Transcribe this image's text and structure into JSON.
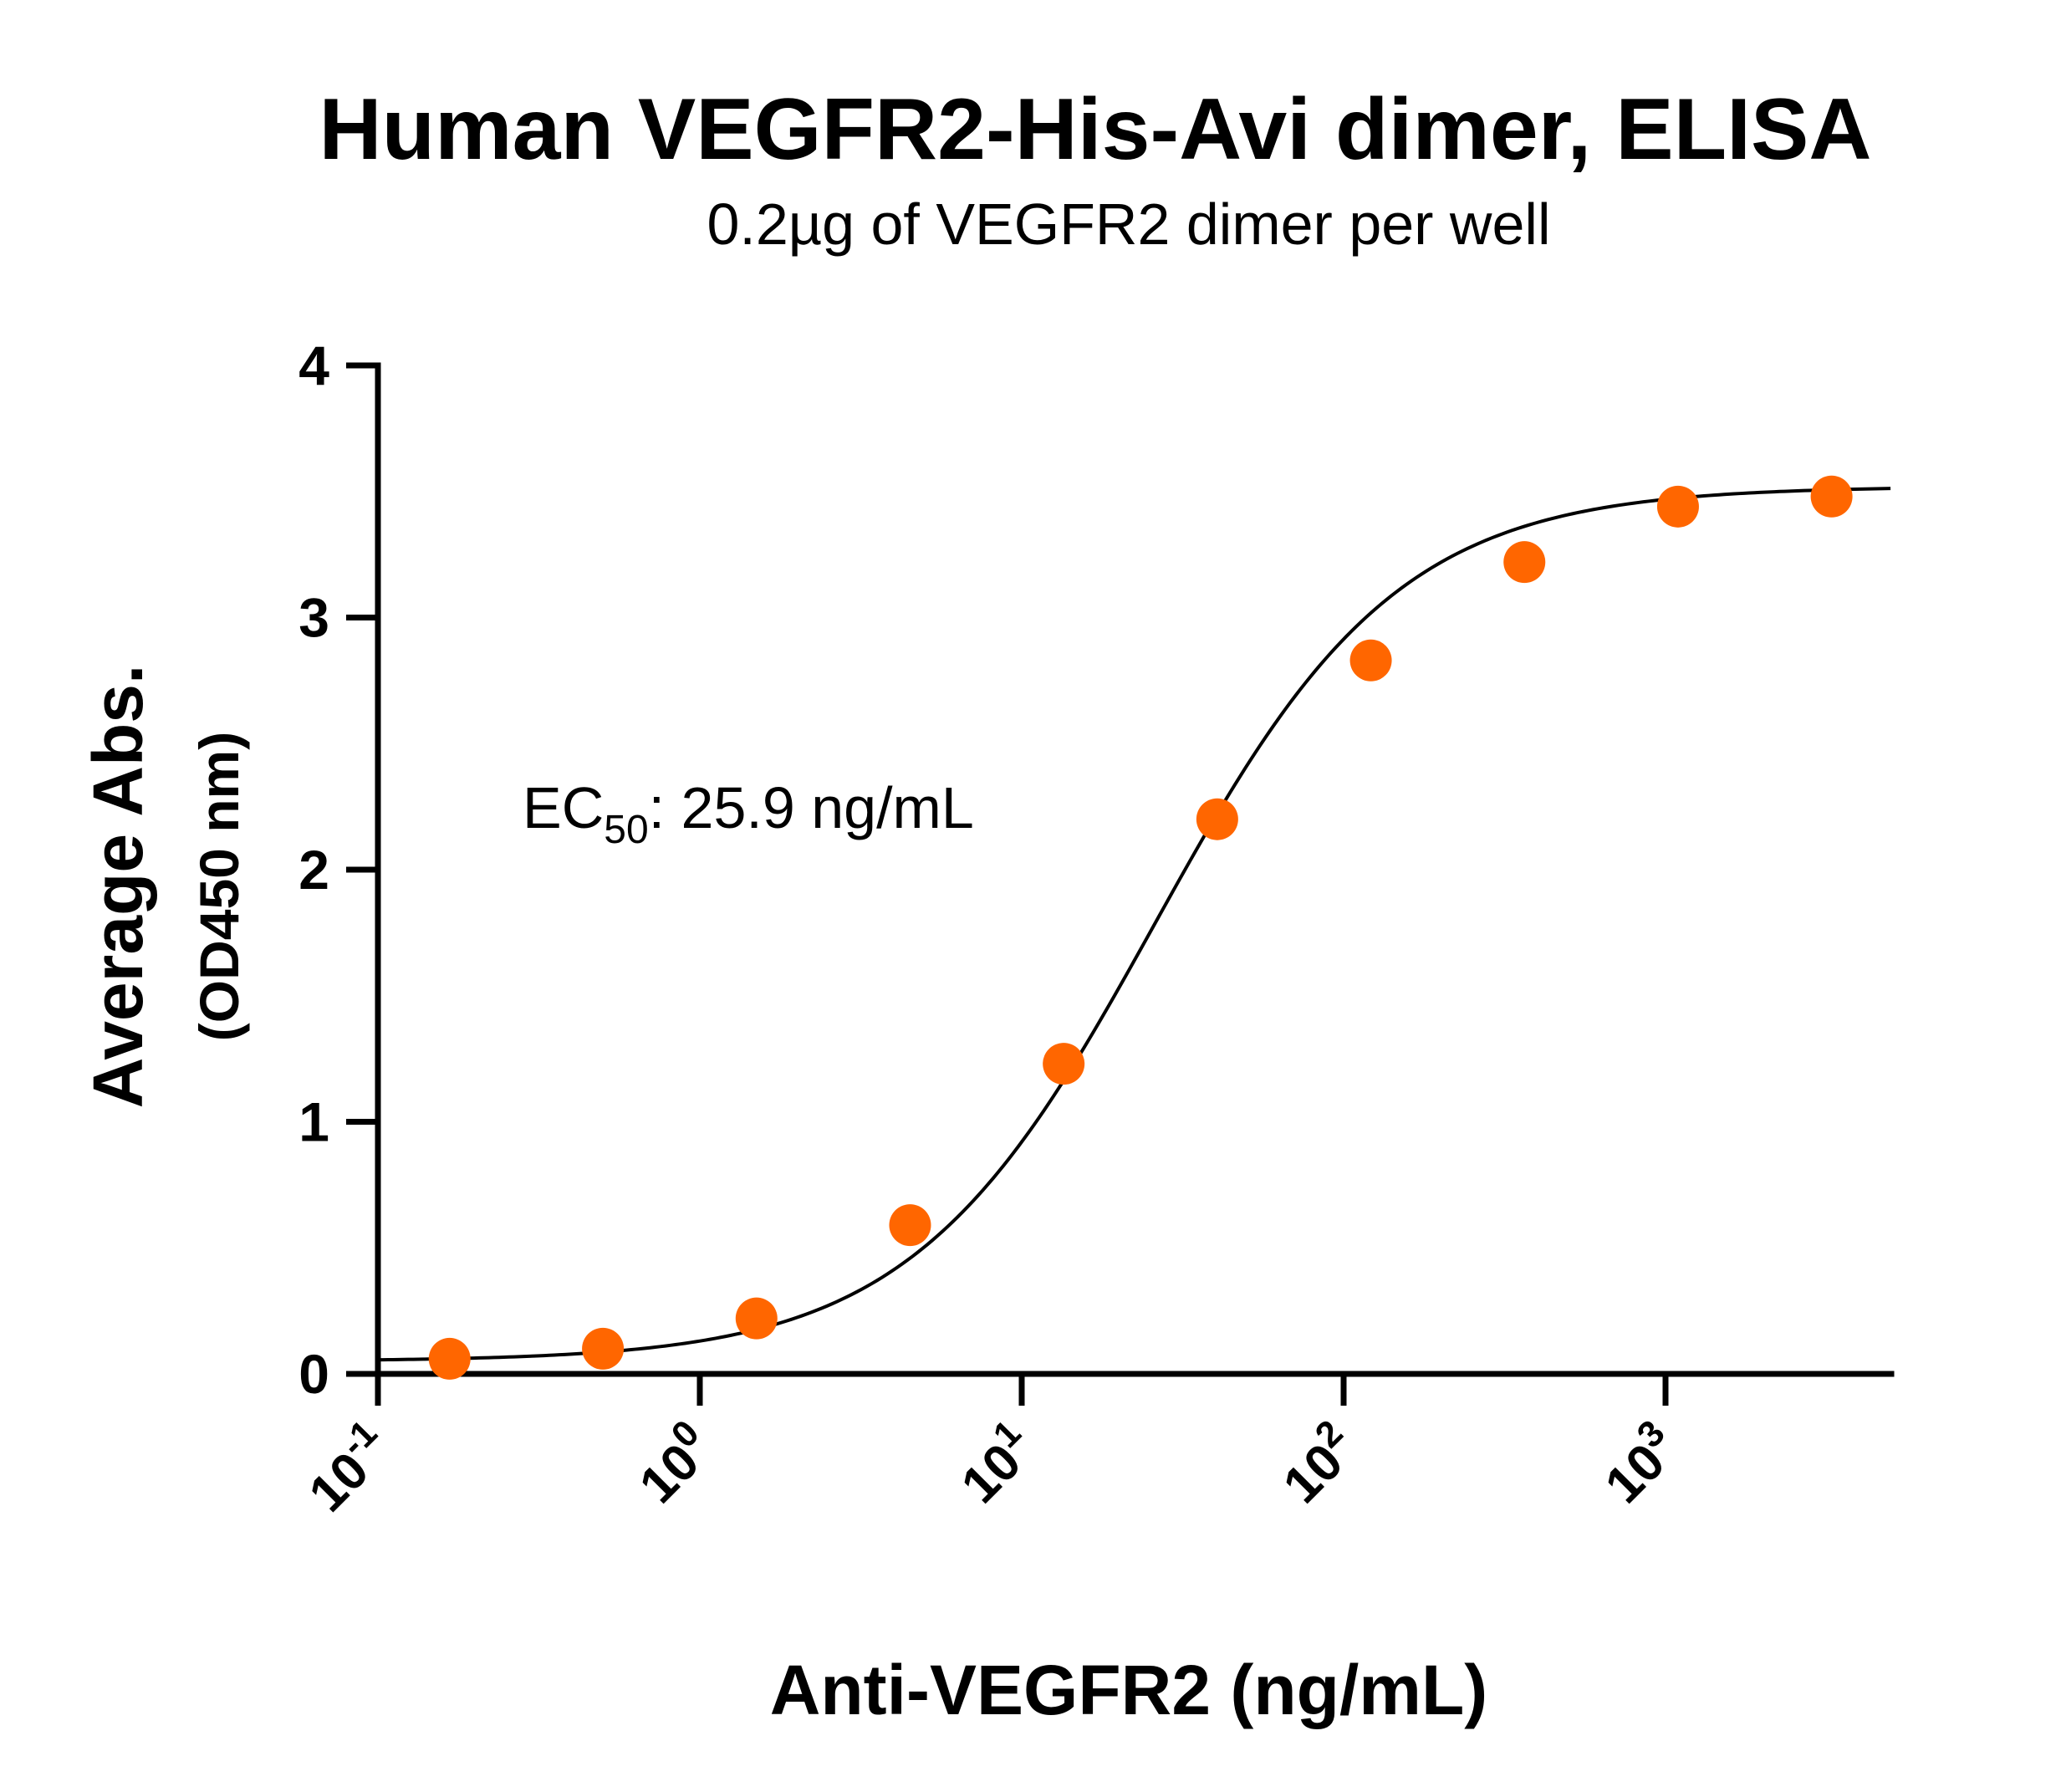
{
  "chart_data": {
    "type": "scatter",
    "title": "Human VEGFR2-His-Avi dimer, ELISA",
    "subtitle": "0.2µg of VEGFR2 dimer per well",
    "xlabel": "Anti-VEGFR2 (ng/mL)",
    "ylabel": "Average Abs.",
    "ylabel_unit": "(OD450 nm)",
    "xscale": "log",
    "xlim": [
      0.1,
      5000
    ],
    "ylim": [
      0,
      4
    ],
    "yticks": [
      "0",
      "1",
      "2",
      "3",
      "4"
    ],
    "xticks": [
      {
        "base": "10",
        "exp": "-1"
      },
      {
        "base": "10",
        "exp": "0"
      },
      {
        "base": "10",
        "exp": "1"
      },
      {
        "base": "10",
        "exp": "2"
      },
      {
        "base": "10",
        "exp": "3"
      }
    ],
    "grid": false,
    "annotation": {
      "prefix": "EC",
      "sub": "50",
      "suffix": ": 25.9 ng/mL"
    },
    "point_color": "#FF6600",
    "curve_color": "#000000",
    "series": [
      {
        "x": [
          0.167,
          0.5,
          1.5,
          4.5,
          13.5,
          40.5,
          121.5,
          364.5,
          1093.5,
          3280
        ],
        "y": [
          0.06,
          0.1,
          0.22,
          0.59,
          1.23,
          2.2,
          2.83,
          3.22,
          3.44,
          3.48
        ]
      }
    ],
    "fit": {
      "model": "4PL",
      "bottom": 0.05,
      "top": 3.52,
      "ec50": 25.9,
      "hill": 1.15
    }
  }
}
